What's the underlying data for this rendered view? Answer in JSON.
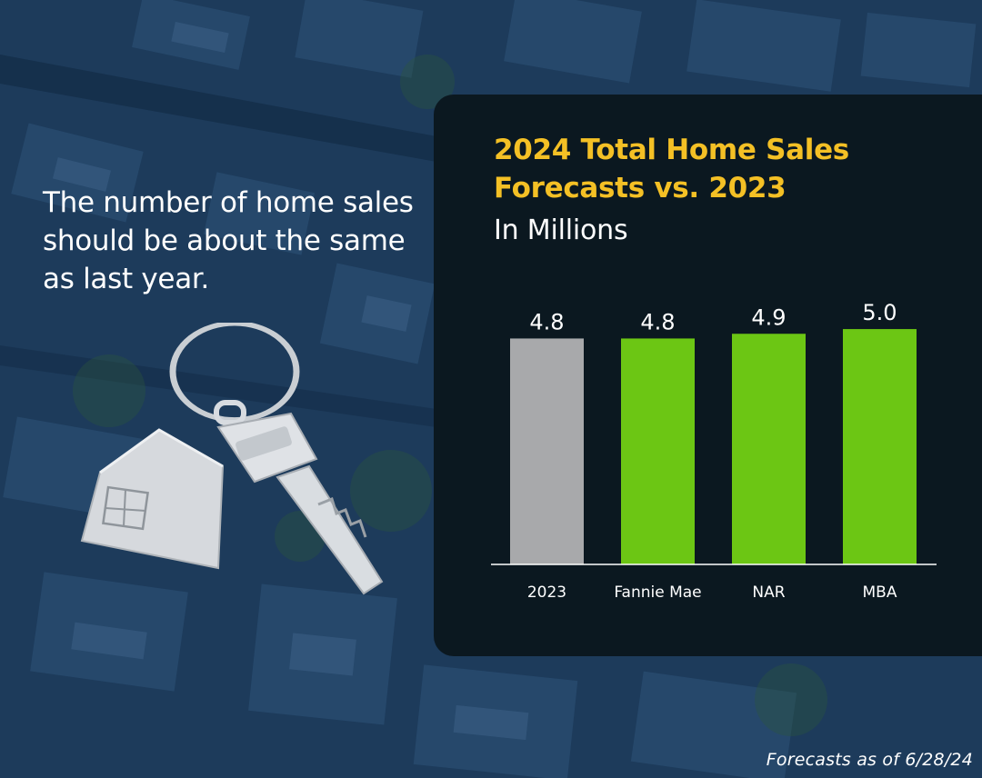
{
  "tagline": "The number of home sales should be about the same as last year.",
  "footnote": "Forecasts as of 6/28/24",
  "colors": {
    "title": "#f4c025",
    "baseline_bar": "#a8a9ab",
    "forecast_bar": "#6cc614",
    "panel": "#0b1820"
  },
  "chart_data": {
    "type": "bar",
    "title_lines": [
      "2024 Total Home Sales",
      "Forecasts vs. 2023"
    ],
    "subtitle": "In Millions",
    "categories": [
      "2023",
      "Fannie Mae",
      "NAR",
      "MBA"
    ],
    "values": [
      4.8,
      4.8,
      4.9,
      5.0
    ],
    "value_labels": [
      "4.8",
      "4.8",
      "4.9",
      "5.0"
    ],
    "bar_colors": [
      "#a8a9ab",
      "#6cc614",
      "#6cc614",
      "#6cc614"
    ],
    "xlabel": "",
    "ylabel": "",
    "ylim": [
      0,
      5.6
    ],
    "grid": false,
    "legend": "none"
  }
}
